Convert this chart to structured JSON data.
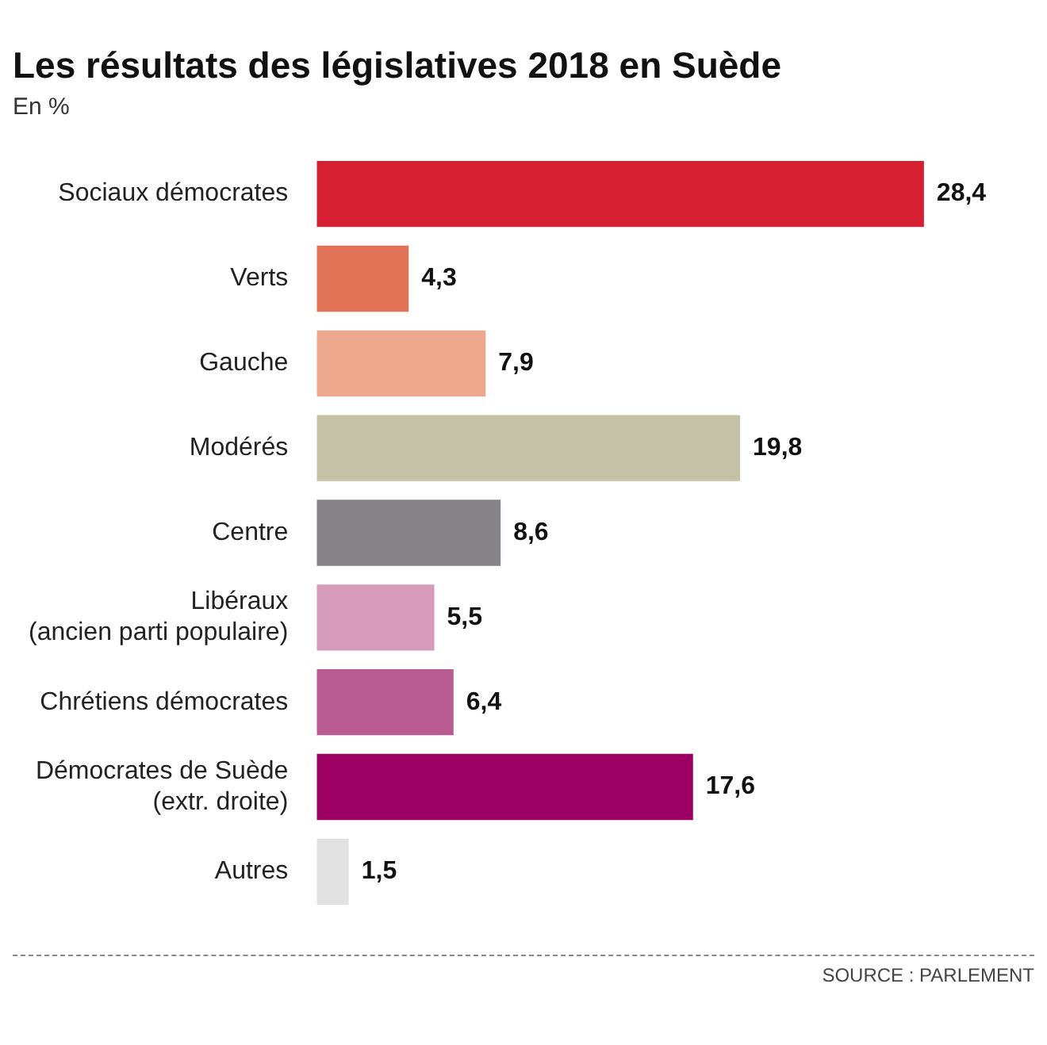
{
  "chart_data": {
    "type": "bar",
    "orientation": "horizontal",
    "title": "Les résultats des législatives 2018 en Suède",
    "subtitle": "En %",
    "categories": [
      "Sociaux démocrates",
      "Verts",
      "Gauche",
      "Modérés",
      "Centre",
      "Libéraux\n(ancien parti populaire)",
      "Chrétiens démocrates",
      "Démocrates de Suède\n(extr. droite)",
      "Autres"
    ],
    "values": [
      28.4,
      4.3,
      7.9,
      19.8,
      8.6,
      5.5,
      6.4,
      17.6,
      1.5
    ],
    "value_labels": [
      "28,4",
      "4,3",
      "7,9",
      "19,8",
      "8,6",
      "5,5",
      "6,4",
      "17,6",
      "1,5"
    ],
    "colors": [
      "#d42030",
      "#e07256",
      "#eda88e",
      "#c4c1a6",
      "#858388",
      "#d69abb",
      "#b95c92",
      "#9c0062",
      "#e2e2e2"
    ],
    "legend": false,
    "tick_labels": "y",
    "annotations": [
      "SOURCE : PARLEMENT"
    ]
  }
}
